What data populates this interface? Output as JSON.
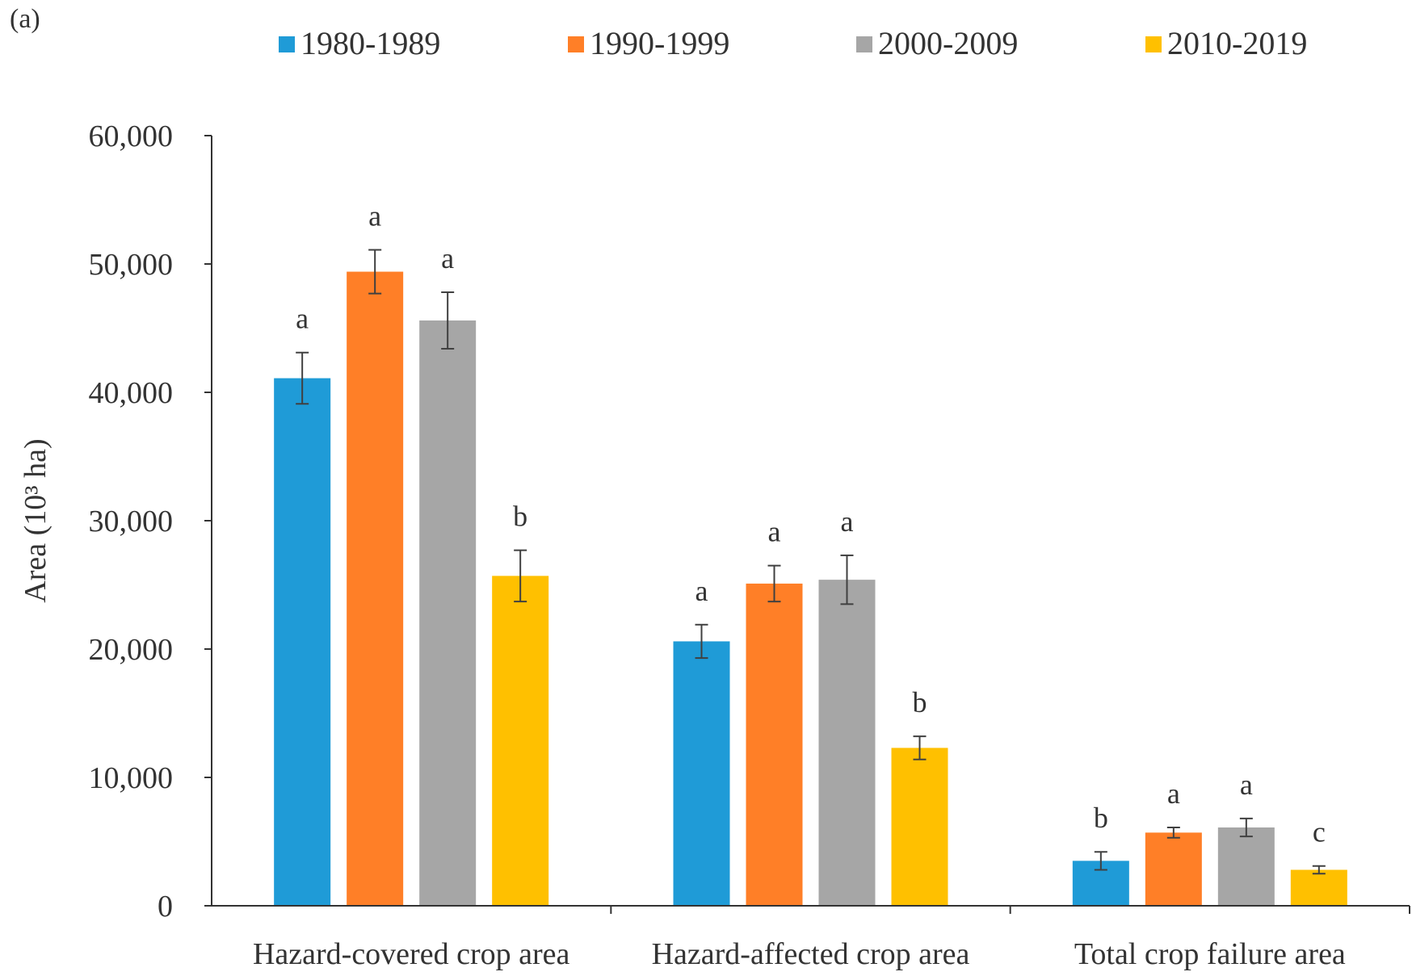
{
  "panel_label": "(a)",
  "chart_data": {
    "type": "bar",
    "title": "",
    "xlabel": "",
    "ylabel": "Area (10³ ha)",
    "ylim": [
      0,
      60000
    ],
    "yticks": [
      0,
      10000,
      20000,
      30000,
      40000,
      50000,
      60000
    ],
    "ytick_labels": [
      "0",
      "10,000",
      "20,000",
      "30,000",
      "40,000",
      "50,000",
      "60,000"
    ],
    "legend_position": "top",
    "categories": [
      "Hazard-covered crop area",
      "Hazard-affected crop area",
      "Total crop failure area"
    ],
    "series": [
      {
        "name": "1980-1989",
        "color": "#1f9bd7",
        "values": [
          41100,
          20600,
          3500
        ],
        "errors": [
          2000,
          1300,
          700
        ],
        "labels": [
          "a",
          "a",
          "b"
        ]
      },
      {
        "name": "1990-1999",
        "color": "#ff7f27",
        "values": [
          49400,
          25100,
          5700
        ],
        "errors": [
          1700,
          1400,
          400
        ],
        "labels": [
          "a",
          "a",
          "a"
        ]
      },
      {
        "name": "2000-2009",
        "color": "#a6a6a6",
        "values": [
          45600,
          25400,
          6100
        ],
        "errors": [
          2200,
          1900,
          700
        ],
        "labels": [
          "a",
          "a",
          "a"
        ]
      },
      {
        "name": "2010-2019",
        "color": "#ffc000",
        "values": [
          25700,
          12300,
          2800
        ],
        "errors": [
          2000,
          900,
          300
        ],
        "labels": [
          "b",
          "b",
          "c"
        ]
      }
    ]
  }
}
